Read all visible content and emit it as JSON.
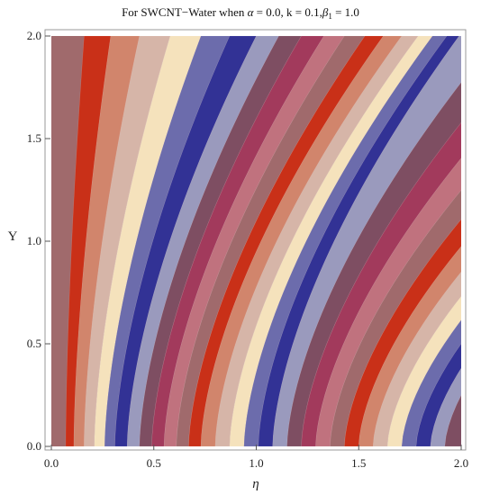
{
  "chart_data": {
    "type": "heatmap",
    "subtype": "contour",
    "title_parts": {
      "prefix": "For  SWCNT",
      "dash": "−",
      "middle": "Water when ",
      "alpha_symbol": "α",
      "alpha_text": " = 0.0, k = 0.1,",
      "beta_symbol": "β",
      "beta_sub": "1",
      "beta_text": " = 1.0"
    },
    "xlabel": "η",
    "ylabel": "Y",
    "xlim": [
      0.0,
      2.0
    ],
    "ylim": [
      0.0,
      2.0
    ],
    "xticks": [
      "0.0",
      "0.5",
      "1.0",
      "1.5",
      "2.0"
    ],
    "yticks": [
      "0.0",
      "0.5",
      "1.0",
      "1.5",
      "2.0"
    ],
    "grid": false,
    "contour_bands": {
      "at_y0_eta": [
        0.07,
        0.11,
        0.16,
        0.21,
        0.26,
        0.31,
        0.37,
        0.43,
        0.49,
        0.55,
        0.61,
        0.67,
        0.73,
        0.8,
        0.87,
        0.94,
        1.01,
        1.08,
        1.15,
        1.22,
        1.29,
        1.36,
        1.43,
        1.5,
        1.57,
        1.64,
        1.71,
        1.78,
        1.85,
        1.92
      ],
      "at_y2_eta": [
        0.16,
        0.29,
        0.43,
        0.58,
        0.73,
        0.87,
        1.0,
        1.11,
        1.22,
        1.33,
        1.43,
        1.53,
        1.62,
        1.71,
        1.79,
        1.86,
        1.93,
        1.99
      ]
    },
    "colors": [
      "#a06a6c",
      "#c93018",
      "#d1856c",
      "#d6b5a8",
      "#f5e2bc",
      "#6c6cac",
      "#323295",
      "#9a9abd",
      "#7e4e62",
      "#a23a5c",
      "#c0727e"
    ]
  }
}
